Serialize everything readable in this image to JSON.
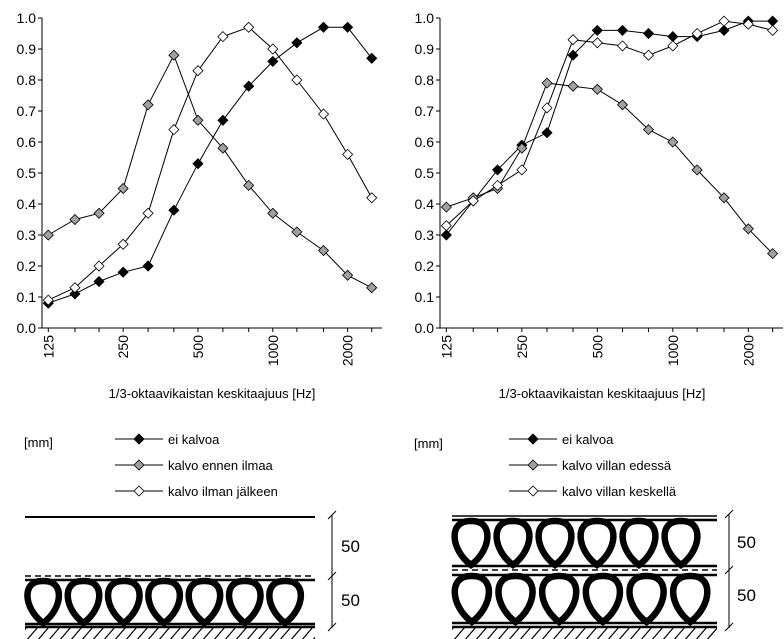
{
  "chart_data": [
    {
      "type": "line",
      "xscale": "log",
      "xlabel": "1/3-oktaavikaistan keskitaajuus [Hz]",
      "ylabel": "",
      "ylim": [
        0.0,
        1.0
      ],
      "xlim": [
        125,
        2500
      ],
      "x": [
        125,
        160,
        200,
        250,
        315,
        400,
        500,
        630,
        800,
        1000,
        1250,
        1600,
        2000,
        2500
      ],
      "xticks": [
        125,
        250,
        500,
        1000,
        2000
      ],
      "xtick_labels": [
        "125",
        "250",
        "500",
        "1000",
        "2000"
      ],
      "yticks": [
        0.0,
        0.1,
        0.2,
        0.3,
        0.4,
        0.5,
        0.6,
        0.7,
        0.8,
        0.9,
        1.0
      ],
      "ytick_labels": [
        "0.0",
        "0.1",
        "0.2",
        "0.3",
        "0.4",
        "0.5",
        "0.6",
        "0.7",
        "0.8",
        "0.9",
        "1.0"
      ],
      "grid": false,
      "legend_unit": "[mm]",
      "series": [
        {
          "name": "ei kalvoa",
          "marker": "diamond",
          "fill": "#000000",
          "values": [
            0.08,
            0.11,
            0.15,
            0.18,
            0.2,
            0.38,
            0.53,
            0.67,
            0.78,
            0.86,
            0.92,
            0.97,
            0.97,
            0.87
          ]
        },
        {
          "name": "kalvo ennen ilmaa",
          "marker": "diamond",
          "fill": "#a0a0a0",
          "values": [
            0.3,
            0.35,
            0.37,
            0.45,
            0.72,
            0.88,
            0.67,
            0.58,
            0.46,
            0.37,
            0.31,
            0.25,
            0.17,
            0.13
          ]
        },
        {
          "name": "kalvo ilman jälkeen",
          "marker": "diamond",
          "fill": "#ffffff",
          "values": [
            0.09,
            0.13,
            0.2,
            0.27,
            0.37,
            0.64,
            0.83,
            0.94,
            0.97,
            0.9,
            0.8,
            0.69,
            0.56,
            0.42
          ]
        }
      ]
    },
    {
      "type": "line",
      "xscale": "log",
      "xlabel": "1/3-oktaavikaistan keskitaajuus [Hz]",
      "ylabel": "",
      "ylim": [
        0.0,
        1.0
      ],
      "xlim": [
        125,
        2500
      ],
      "x": [
        125,
        160,
        200,
        250,
        315,
        400,
        500,
        630,
        800,
        1000,
        1250,
        1600,
        2000,
        2500
      ],
      "xticks": [
        125,
        250,
        500,
        1000,
        2000
      ],
      "xtick_labels": [
        "125",
        "250",
        "500",
        "1000",
        "2000"
      ],
      "yticks": [
        0.0,
        0.1,
        0.2,
        0.3,
        0.4,
        0.5,
        0.6,
        0.7,
        0.8,
        0.9,
        1.0
      ],
      "ytick_labels": [
        "0.0",
        "0.1",
        "0.2",
        "0.3",
        "0.4",
        "0.5",
        "0.6",
        "0.7",
        "0.8",
        "0.9",
        "1.0"
      ],
      "grid": false,
      "legend_unit": "[mm]",
      "series": [
        {
          "name": "ei kalvoa",
          "marker": "diamond",
          "fill": "#000000",
          "values": [
            0.3,
            0.41,
            0.51,
            0.59,
            0.63,
            0.88,
            0.96,
            0.96,
            0.95,
            0.94,
            0.94,
            0.96,
            0.99,
            0.99
          ]
        },
        {
          "name": "kalvo villan edessä",
          "marker": "diamond",
          "fill": "#a0a0a0",
          "values": [
            0.39,
            0.42,
            0.45,
            0.58,
            0.79,
            0.78,
            0.77,
            0.72,
            0.64,
            0.6,
            0.51,
            0.42,
            0.32,
            0.24
          ]
        },
        {
          "name": "kalvo villan keskellä",
          "marker": "diamond",
          "fill": "#ffffff",
          "values": [
            0.33,
            0.41,
            0.46,
            0.51,
            0.71,
            0.93,
            0.92,
            0.91,
            0.88,
            0.91,
            0.95,
            0.99,
            0.98,
            0.96
          ]
        }
      ]
    }
  ],
  "diagrams": [
    {
      "dimension_labels": [
        "50",
        "50"
      ]
    },
    {
      "dimension_labels": [
        "50",
        "50"
      ]
    }
  ]
}
